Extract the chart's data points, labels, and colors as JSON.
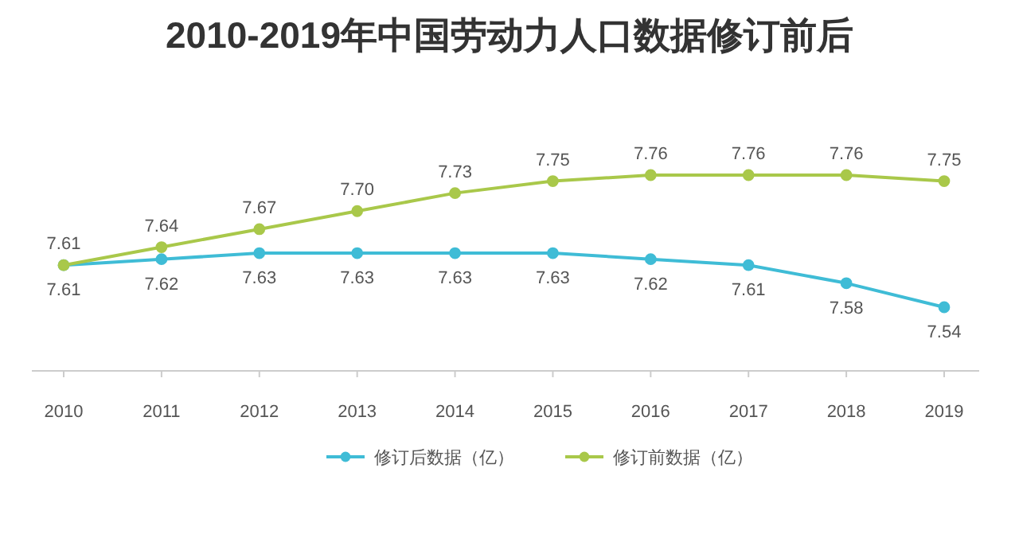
{
  "chart_data": {
    "type": "line",
    "title": "2010-2019年中国劳动力人口数据修订前后",
    "categories": [
      "2010",
      "2011",
      "2012",
      "2013",
      "2014",
      "2015",
      "2016",
      "2017",
      "2018",
      "2019"
    ],
    "series": [
      {
        "name": "修订后数据（亿）",
        "color": "#3fbcd6",
        "values": [
          7.61,
          7.62,
          7.63,
          7.63,
          7.63,
          7.63,
          7.62,
          7.61,
          7.58,
          7.54
        ],
        "value_labels": [
          "7.61",
          "7.62",
          "7.63",
          "7.63",
          "7.63",
          "7.63",
          "7.62",
          "7.61",
          "7.58",
          "7.54"
        ]
      },
      {
        "name": "修订前数据（亿）",
        "color": "#a9c84a",
        "values": [
          7.61,
          7.64,
          7.67,
          7.7,
          7.73,
          7.75,
          7.76,
          7.76,
          7.76,
          7.75
        ],
        "value_labels": [
          "7.61",
          "7.64",
          "7.67",
          "7.70",
          "7.73",
          "7.75",
          "7.76",
          "7.76",
          "7.76",
          "7.75"
        ]
      }
    ],
    "marker": "circle",
    "legend": "bottom",
    "grid": false
  }
}
